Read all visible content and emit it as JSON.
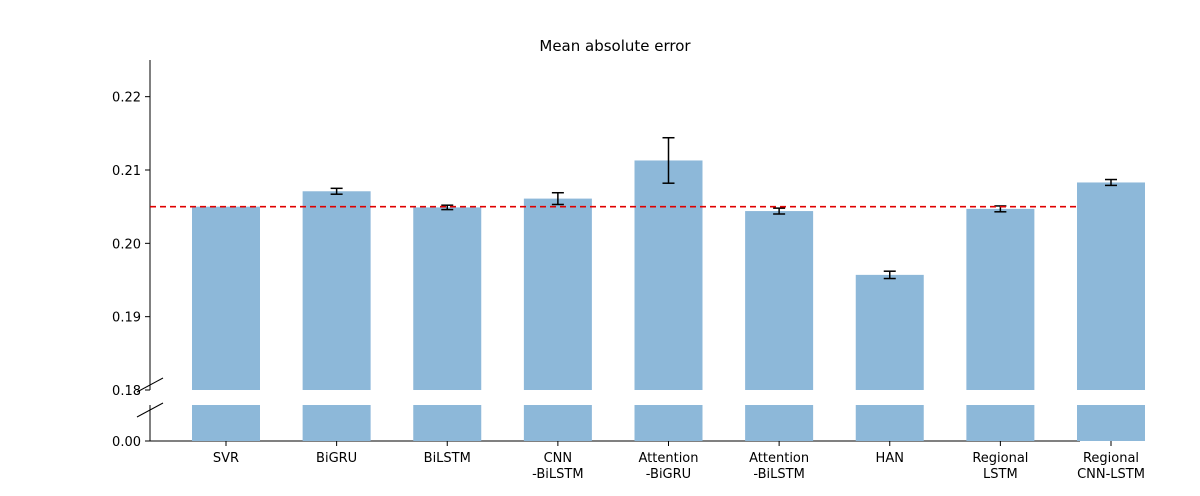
{
  "chart_data": {
    "type": "bar",
    "title": "Mean absolute error",
    "xlabel": "",
    "ylabel": "",
    "categories": [
      [
        "SVR"
      ],
      [
        "BiGRU"
      ],
      [
        "BiLSTM"
      ],
      [
        "CNN",
        "-BiLSTM"
      ],
      [
        "Attention",
        "-BiGRU"
      ],
      [
        "Attention",
        "-BiLSTM"
      ],
      [
        "HAN"
      ],
      [
        "Regional",
        "LSTM"
      ],
      [
        "Regional",
        "CNN-LSTM"
      ]
    ],
    "values": [
      0.205,
      0.2071,
      0.2049,
      0.2061,
      0.2113,
      0.2044,
      0.1957,
      0.2047,
      0.2083
    ],
    "errors": [
      null,
      0.0004,
      0.0003,
      0.0008,
      0.0031,
      0.0004,
      0.0005,
      0.0004,
      0.0004
    ],
    "reference_line": 0.205,
    "reference_line_color": "#e00000",
    "bar_color": "#8db8d9",
    "broken_axis": true,
    "upper_ylim": [
      0.18,
      0.225
    ],
    "upper_yticks": [
      0.18,
      0.19,
      0.2,
      0.21,
      0.22
    ],
    "upper_ytick_labels": [
      "0.18",
      "0.19",
      "0.20",
      "0.21",
      "0.22"
    ],
    "lower_ytick_labels": [
      "0.00"
    ],
    "grid": false
  }
}
